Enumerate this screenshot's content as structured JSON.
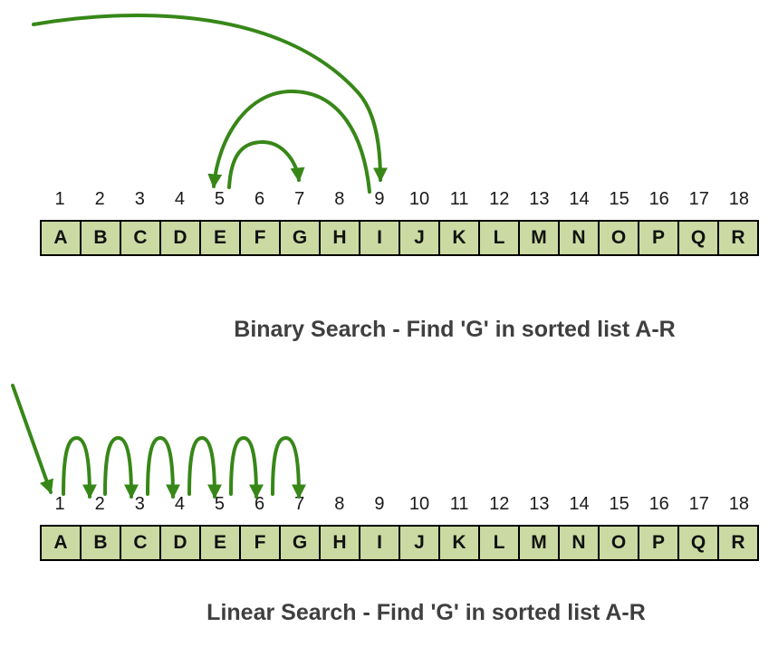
{
  "colors": {
    "background": "#ffffff",
    "arrow": "#378718",
    "cell_fill": "#cbdaa2",
    "cell_border": "#000000",
    "index_text": "#1a1a1a",
    "letter_text": "#111111",
    "caption_text": "#3f3f3f"
  },
  "binary": {
    "caption": "Binary Search - Find 'G' in sorted list A-R",
    "search_path": [
      9,
      5,
      7
    ],
    "cells": [
      {
        "index": "1",
        "letter": "A"
      },
      {
        "index": "2",
        "letter": "B"
      },
      {
        "index": "3",
        "letter": "C"
      },
      {
        "index": "4",
        "letter": "D"
      },
      {
        "index": "5",
        "letter": "E"
      },
      {
        "index": "6",
        "letter": "F"
      },
      {
        "index": "7",
        "letter": "G"
      },
      {
        "index": "8",
        "letter": "H"
      },
      {
        "index": "9",
        "letter": "I"
      },
      {
        "index": "10",
        "letter": "J"
      },
      {
        "index": "11",
        "letter": "K"
      },
      {
        "index": "12",
        "letter": "L"
      },
      {
        "index": "13",
        "letter": "M"
      },
      {
        "index": "14",
        "letter": "N"
      },
      {
        "index": "15",
        "letter": "O"
      },
      {
        "index": "16",
        "letter": "P"
      },
      {
        "index": "17",
        "letter": "Q"
      },
      {
        "index": "18",
        "letter": "R"
      }
    ]
  },
  "linear": {
    "caption": "Linear Search - Find 'G' in sorted list A-R",
    "search_path": [
      1,
      2,
      3,
      4,
      5,
      6,
      7
    ],
    "cells": [
      {
        "index": "1",
        "letter": "A"
      },
      {
        "index": "2",
        "letter": "B"
      },
      {
        "index": "3",
        "letter": "C"
      },
      {
        "index": "4",
        "letter": "D"
      },
      {
        "index": "5",
        "letter": "E"
      },
      {
        "index": "6",
        "letter": "F"
      },
      {
        "index": "7",
        "letter": "G"
      },
      {
        "index": "8",
        "letter": "H"
      },
      {
        "index": "9",
        "letter": "I"
      },
      {
        "index": "10",
        "letter": "J"
      },
      {
        "index": "11",
        "letter": "K"
      },
      {
        "index": "12",
        "letter": "L"
      },
      {
        "index": "13",
        "letter": "M"
      },
      {
        "index": "14",
        "letter": "N"
      },
      {
        "index": "15",
        "letter": "O"
      },
      {
        "index": "16",
        "letter": "P"
      },
      {
        "index": "17",
        "letter": "Q"
      },
      {
        "index": "18",
        "letter": "R"
      }
    ]
  }
}
